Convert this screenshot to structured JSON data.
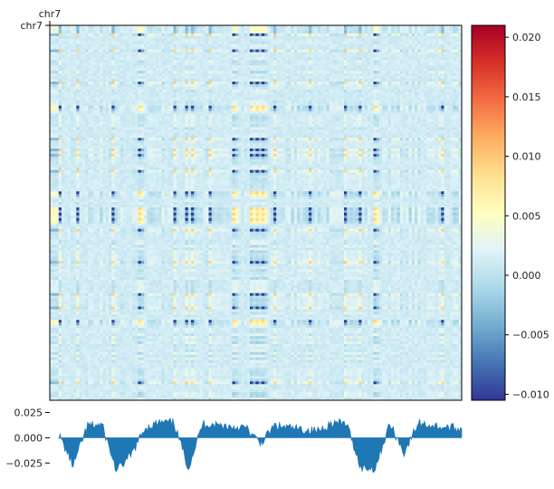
{
  "chart_data": [
    {
      "type": "heatmap",
      "panel": "correlation-matrix",
      "title": "",
      "xlabel": "",
      "ylabel": "",
      "x_tick_labels": [
        "chr7"
      ],
      "y_tick_labels": [
        "chr7"
      ],
      "size": [
        140,
        140
      ],
      "value_range": [
        -0.0105,
        0.021
      ],
      "colormap": [
        "#313695",
        "#4575b4",
        "#74add1",
        "#abd9e9",
        "#e0f3f8",
        "#ffffbf",
        "#fee090",
        "#fdae61",
        "#f46d43",
        "#d73027",
        "#a50026"
      ],
      "strong_positive_bins": [
        30,
        62,
        68,
        70,
        72,
        110
      ],
      "strong_negative_bins": [
        3,
        9,
        21,
        42,
        46,
        48,
        54,
        76,
        88,
        100,
        105,
        133
      ],
      "colorbar": {
        "ticks": [
          -0.01,
          -0.005,
          0.0,
          0.005,
          0.01,
          0.015,
          0.02
        ],
        "tick_labels": [
          "−0.010",
          "−0.005",
          "0.000",
          "0.005",
          "0.010",
          "0.015",
          "0.020"
        ]
      }
    },
    {
      "type": "area",
      "panel": "eigenvector-track",
      "title": "",
      "xlabel": "",
      "ylabel": "",
      "ylim": [
        -0.04,
        0.03
      ],
      "yticks": [
        0.025,
        0.0,
        -0.025
      ],
      "ytick_labels": [
        "0.025",
        "0.000",
        "−0.025"
      ],
      "x": [
        0,
        5,
        10,
        15,
        20,
        25,
        30,
        35,
        40,
        45,
        50,
        55,
        60,
        65,
        70,
        75,
        80,
        85,
        90,
        95,
        100,
        105,
        110,
        115,
        120,
        125,
        130,
        135,
        140
      ],
      "y": [
        0.003,
        -0.028,
        0.012,
        0.013,
        -0.033,
        -0.018,
        0.01,
        0.015,
        0.015,
        -0.03,
        0.014,
        0.013,
        0.011,
        0.01,
        -0.006,
        0.012,
        0.01,
        0.008,
        0.007,
        0.015,
        0.014,
        -0.03,
        -0.03,
        0.014,
        -0.015,
        0.015,
        0.012,
        0.01,
        0.009
      ]
    }
  ]
}
